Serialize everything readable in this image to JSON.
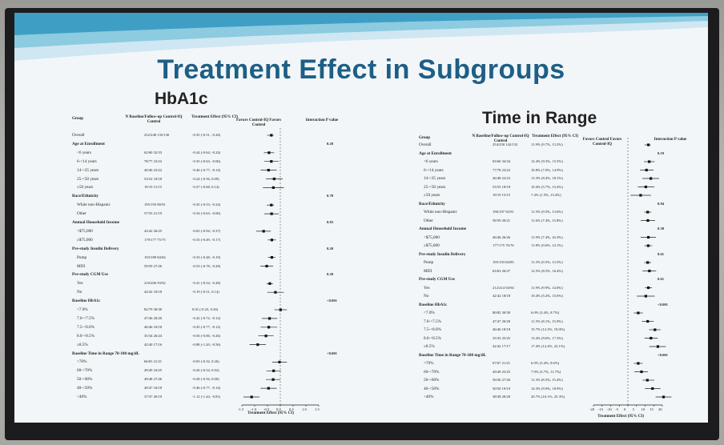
{
  "slide": {
    "title": "Treatment Effect in Subgroups",
    "colors": {
      "title": "#1d5f86",
      "swoosh_light": "#cfe7f2",
      "swoosh_mid": "#8ccbe0",
      "swoosh_dark": "#3f9ec4"
    }
  },
  "left": {
    "panel_title": "HbA1c",
    "headers": {
      "group": "Group",
      "n": "N Baseline/Follow-up Control-IQ Control",
      "effect": "Treatment Effect (95% CI)",
      "favors": "Favors Control-IQ  Favors Control",
      "interaction": "Interaction P value"
    },
    "axis_label": "Treatment Effect (95% CI)",
    "ticks": [
      "-1.5",
      "-1.0",
      "-0.5",
      "0.0",
      "0.5",
      "1.0",
      "1.5"
    ],
    "rows": [
      {
        "label": "Overall",
        "n": "252/248  135/130",
        "effect": "-0.35 (-0.51, -0.26)",
        "p": "",
        "est": -0.35,
        "lo": -0.51,
        "hi": -0.26
      },
      {
        "label": "Age at Enrollment",
        "n": "",
        "effect": "",
        "p": "0.28"
      },
      {
        "label": "<6 years",
        "n": "62/60  32/33",
        "effect": "-0.44 (-0.64, -0.24)",
        "p": "",
        "est": -0.44,
        "lo": -0.64,
        "hi": -0.24
      },
      {
        "label": "6-<14 years",
        "n": "78/77  23/22",
        "effect": "-0.35 (-0.63, -0.06)",
        "p": "",
        "est": -0.35,
        "lo": -0.63,
        "hi": -0.06
      },
      {
        "label": "14-<25 years",
        "n": "40/40  23/22",
        "effect": "-0.46 (-0.77, -0.14)",
        "p": "",
        "est": -0.46,
        "lo": -0.77,
        "hi": -0.14
      },
      {
        "label": "25-<50 years",
        "n": "53/52  18/18",
        "effect": "-0.24 (-0.56, 0.09)",
        "p": "",
        "est": -0.24,
        "lo": -0.56,
        "hi": 0.09
      },
      {
        "label": "≥50 years",
        "n": "19/19  15/15",
        "effect": "-0.27 (-0.68, 0.14)",
        "p": "",
        "est": -0.27,
        "lo": -0.68,
        "hi": 0.14
      },
      {
        "label": "Race/Ethnicity",
        "n": "",
        "effect": "",
        "p": "0.78"
      },
      {
        "label": "White non-Hispanic",
        "n": "195/193  90/91",
        "effect": "-0.35 (-0.53, -0.24)",
        "p": "",
        "est": -0.35,
        "lo": -0.53,
        "hi": -0.24
      },
      {
        "label": "Other",
        "n": "57/55  21/19",
        "effect": "-0.34 (-0.63, -0.06)",
        "p": "",
        "est": -0.34,
        "lo": -0.63,
        "hi": -0.06
      },
      {
        "label": "Annual Household Income",
        "n": "",
        "effect": "",
        "p": "0.83"
      },
      {
        "label": "<$75,000",
        "n": "43/42  26/25",
        "effect": "-0.65 (-0.94, -0.37)",
        "p": "",
        "est": -0.65,
        "lo": -0.94,
        "hi": -0.37
      },
      {
        "label": "≥$75,000",
        "n": "179/177  75/75",
        "effect": "-0.33 (-0.49, -0.17)",
        "p": "",
        "est": -0.33,
        "lo": -0.49,
        "hi": -0.17
      },
      {
        "label": "Pre-study Insulin Delivery",
        "n": "",
        "effect": "",
        "p": "0.20"
      },
      {
        "label": "Pump",
        "n": "193/189  84/84",
        "effect": "-0.33 (-0.48, -0.19)",
        "p": "",
        "est": -0.33,
        "lo": -0.48,
        "hi": -0.19
      },
      {
        "label": "MDI",
        "n": "59/59  27/26",
        "effect": "-0.53 (-0.78, -0.28)",
        "p": "",
        "est": -0.53,
        "lo": -0.78,
        "hi": -0.28
      },
      {
        "label": "Pre-study CGM Use",
        "n": "",
        "effect": "",
        "p": "0.20"
      },
      {
        "label": "Yes",
        "n": "210/206  93/92",
        "effect": "-0.41 (-0.54, -0.28)",
        "p": "",
        "est": -0.41,
        "lo": -0.54,
        "hi": -0.28
      },
      {
        "label": "No",
        "n": "42/42  18/18",
        "effect": "-0.19 (-0.51, 0.14)",
        "p": "",
        "est": -0.19,
        "lo": -0.51,
        "hi": 0.14
      },
      {
        "label": "Baseline HbA1c",
        "n": "",
        "effect": "",
        "p": "<0.001"
      },
      {
        "label": "<7.0%",
        "n": "82/79  30/30",
        "effect": "0.01 (-0.23, 0.26)",
        "p": "",
        "est": 0.01,
        "lo": -0.23,
        "hi": 0.26
      },
      {
        "label": "7.0-<7.5%",
        "n": "47/46  20/20",
        "effect": "-0.42 (-0.72, -0.12)",
        "p": "",
        "est": -0.42,
        "lo": -0.72,
        "hi": -0.12
      },
      {
        "label": "7.5-<8.0%",
        "n": "46/46  18/18",
        "effect": "-0.45 (-0.77, -0.12)",
        "p": "",
        "est": -0.45,
        "lo": -0.77,
        "hi": -0.12
      },
      {
        "label": "8.0-<8.5%",
        "n": "35/34  26/24",
        "effect": "-0.56 (-0.86, -0.26)",
        "p": "",
        "est": -0.56,
        "lo": -0.86,
        "hi": -0.26
      },
      {
        "label": "≥8.5%",
        "n": "42/40  17/16",
        "effect": "-0.88 (-1.20, -0.56)",
        "p": "",
        "est": -0.88,
        "lo": -1.2,
        "hi": -0.56
      },
      {
        "label": "Baseline Time in Range 70-180 mg/dL",
        "n": "",
        "effect": "",
        "p": "<0.001"
      },
      {
        "label": ">70%",
        "n": "66/65  21/21",
        "effect": "-0.03 (-0.32, 0.26)",
        "p": "",
        "est": -0.03,
        "lo": -0.32,
        "hi": 0.26
      },
      {
        "label": "60-<70%",
        "n": "49/49  24/25",
        "effect": "-0.26 (-0.54, 0.02)",
        "p": "",
        "est": -0.26,
        "lo": -0.54,
        "hi": 0.02
      },
      {
        "label": "50-<60%",
        "n": "49/48  27/26",
        "effect": "-0.28 (-0.56, 0.00)",
        "p": "",
        "est": -0.28,
        "lo": -0.56,
        "hi": 0.0
      },
      {
        "label": "40-<50%",
        "n": "49/47  18/18",
        "effect": "-0.46 (-0.77, -0.14)",
        "p": "",
        "est": -0.46,
        "lo": -0.77,
        "hi": -0.14
      },
      {
        "label": "<40%",
        "n": "37/37  20/19",
        "effect": "-1.12 (-1.44, -0.81)",
        "p": "",
        "est": -1.12,
        "lo": -1.44,
        "hi": -0.81
      }
    ]
  },
  "right": {
    "panel_title": "Time in Range",
    "headers": {
      "group": "Group",
      "n": "N Baseline/Follow-up Control-IQ Control",
      "effect": "Treatment Effect (95% CI)",
      "favors": "Favors Control  Favors Control-IQ",
      "interaction": "Interaction P value"
    },
    "axis_label": "Treatment Effect (95% CI)",
    "ticks": [
      "-20",
      "-15",
      "-10",
      "-5",
      "0",
      "5",
      "10",
      "15",
      "20"
    ],
    "rows": [
      {
        "label": "Overall",
        "n": "254/250  142/132",
        "effect": "11.9% (9.7%, 13.2%)",
        "p": "",
        "est": 11.9,
        "lo": 9.7,
        "hi": 13.2
      },
      {
        "label": "Age at Enrollment",
        "n": "",
        "effect": "",
        "p": "0.19"
      },
      {
        "label": "<6 years",
        "n": "65/66  34/34",
        "effect": "12.4% (9.3%, 15.5%)",
        "p": "",
        "est": 12.4,
        "lo": 9.3,
        "hi": 15.5
      },
      {
        "label": "6-<14 years",
        "n": "77/78  23/22",
        "effect": "10.8% (7.0%, 14.9%)",
        "p": "",
        "est": 10.8,
        "lo": 7.0,
        "hi": 14.9
      },
      {
        "label": "14-<25 years",
        "n": "46/48  22/23",
        "effect": "13.3% (8.4%, 18.1%)",
        "p": "",
        "est": 13.3,
        "lo": 8.4,
        "hi": 18.1
      },
      {
        "label": "25-<50 years",
        "n": "53/55  18/18",
        "effect": "10.4% (5.7%, 15.4%)",
        "p": "",
        "est": 10.4,
        "lo": 5.7,
        "hi": 15.4
      },
      {
        "label": "≥50 years",
        "n": "19/19  15/15",
        "effect": "7.4% (1.5%, 13.4%)",
        "p": "",
        "est": 7.4,
        "lo": 1.5,
        "hi": 13.4
      },
      {
        "label": "Race/Ethnicity",
        "n": "",
        "effect": "",
        "p": "0.94"
      },
      {
        "label": "White non-Hispanic",
        "n": "196/197  92/91",
        "effect": "11.5% (9.5%, 13.6%)",
        "p": "",
        "est": 11.5,
        "lo": 9.5,
        "hi": 13.6
      },
      {
        "label": "Other",
        "n": "58/59  20/21",
        "effect": "11.6% (7.4%, 15.8%)",
        "p": "",
        "est": 11.6,
        "lo": 7.4,
        "hi": 15.8
      },
      {
        "label": "Annual Household Income",
        "n": "",
        "effect": "",
        "p": "0.38"
      },
      {
        "label": "<$75,000",
        "n": "46/46  26/26",
        "effect": "11.9% (7.4%, 16.3%)",
        "p": "",
        "est": 11.9,
        "lo": 7.4,
        "hi": 16.3
      },
      {
        "label": "≥$75,000",
        "n": "177/175  76/76",
        "effect": "11.8% (9.6%, 14.1%)",
        "p": "",
        "est": 11.8,
        "lo": 9.6,
        "hi": 14.1
      },
      {
        "label": "Pre-study Insulin Delivery",
        "n": "",
        "effect": "",
        "p": "0.61"
      },
      {
        "label": "Pump",
        "n": "195/193  84/85",
        "effect": "11.5% (9.5%, 13.5%)",
        "p": "",
        "est": 11.5,
        "lo": 9.5,
        "hi": 13.5
      },
      {
        "label": "MDI",
        "n": "63/63  26/27",
        "effect": "12.5% (8.5%, 16.4%)",
        "p": "",
        "est": 12.5,
        "lo": 8.5,
        "hi": 16.4
      },
      {
        "label": "Pre-study CGM Use",
        "n": "",
        "effect": "",
        "p": "0.61"
      },
      {
        "label": "Yes",
        "n": "212/214  94/94",
        "effect": "11.9% (9.9%, 14.0%)",
        "p": "",
        "est": 11.9,
        "lo": 9.9,
        "hi": 14.0
      },
      {
        "label": "No",
        "n": "42/42  18/18",
        "effect": "10.4% (5.2%, 15.6%)",
        "p": "",
        "est": 10.4,
        "lo": 5.2,
        "hi": 15.6
      },
      {
        "label": "Baseline HbA1c",
        "n": "",
        "effect": "",
        "p": "<0.001"
      },
      {
        "label": "<7.0%",
        "n": "80/82  30/30",
        "effect": "6.0% (3.4%, 8.7%)",
        "p": "",
        "est": 6.0,
        "lo": 3.4,
        "hi": 8.7
      },
      {
        "label": "7.0-<7.5%",
        "n": "47/47  20/20",
        "effect": "11.5% (8.1%, 15.0%)",
        "p": "",
        "est": 11.5,
        "lo": 8.1,
        "hi": 15.0
      },
      {
        "label": "7.5-<8.0%",
        "n": "46/46  18/18",
        "effect": "15.7% (12.3%, 19.0%)",
        "p": "",
        "est": 15.7,
        "lo": 12.3,
        "hi": 19.0
      },
      {
        "label": "8.0-<8.5%",
        "n": "35/35  25/25",
        "effect": "13.4% (9.6%, 17.3%)",
        "p": "",
        "est": 13.4,
        "lo": 9.6,
        "hi": 17.3
      },
      {
        "label": "≥8.5%",
        "n": "42/42  17/17",
        "effect": "17.4% (12.4%, 22.1%)",
        "p": "",
        "est": 17.4,
        "lo": 12.4,
        "hi": 22.1
      },
      {
        "label": "Baseline Time in Range 70-180 mg/dL",
        "n": "",
        "effect": "",
        "p": "<0.001"
      },
      {
        "label": ">70%",
        "n": "67/67  21/21",
        "effect": "6.0% (3.4%, 8.6%)",
        "p": "",
        "est": 6.0,
        "lo": 3.4,
        "hi": 8.6
      },
      {
        "label": "60-<70%",
        "n": "49/49  25/25",
        "effect": "7.9% (3.7%, 11.7%)",
        "p": "",
        "est": 7.9,
        "lo": 3.7,
        "hi": 11.7
      },
      {
        "label": "50-<60%",
        "n": "56/56  27/26",
        "effect": "11.3% (8.5%, 15.4%)",
        "p": "",
        "est": 11.3,
        "lo": 8.5,
        "hi": 15.4
      },
      {
        "label": "40-<50%",
        "n": "50/50  19/19",
        "effect": "14.3% (9.9%, 18.9%)",
        "p": "",
        "est": 14.3,
        "lo": 9.9,
        "hi": 18.9
      },
      {
        "label": "<40%",
        "n": "38/38  20/20",
        "effect": "20.7% (16.1%, 25.3%)",
        "p": "",
        "est": 20.7,
        "lo": 16.1,
        "hi": 25.3
      }
    ]
  }
}
